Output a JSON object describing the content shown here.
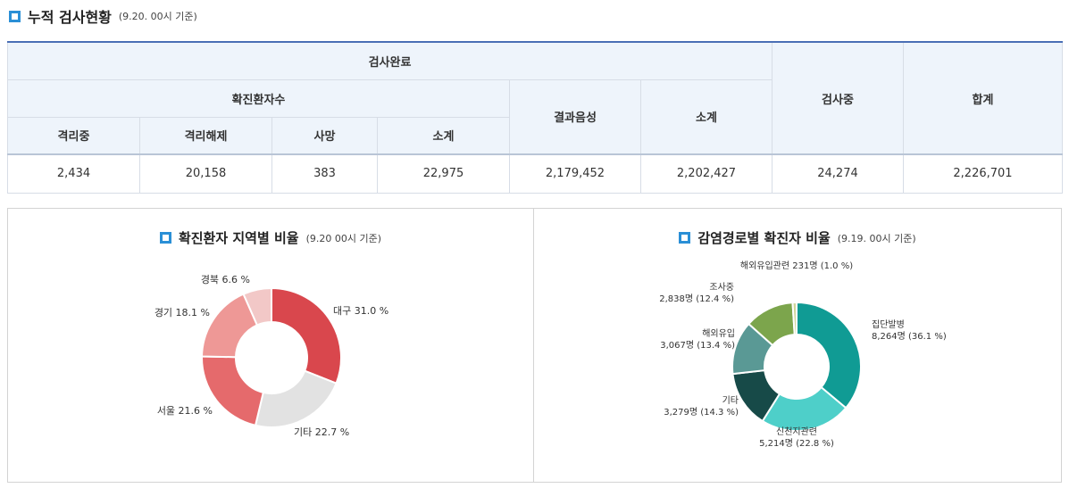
{
  "summary": {
    "title": "누적 검사현황",
    "subtitle": "(9.20. 00시 기준)",
    "header_completed": "검사완료",
    "header_confirmed": "확진환자수",
    "header_negative": "결과음성",
    "header_subtotal2": "소계",
    "header_testing": "검사중",
    "header_total": "합계",
    "sub_headers": [
      "격리중",
      "격리해제",
      "사망",
      "소계"
    ],
    "values": {
      "isolated": "2,434",
      "released": "20,158",
      "deaths": "383",
      "confirmed_subtotal": "22,975",
      "negative": "2,179,452",
      "completed_subtotal": "2,202,427",
      "testing": "24,274",
      "total": "2,226,701"
    }
  },
  "chart_data": [
    {
      "type": "pie",
      "title": "확진환자 지역별 비율",
      "subtitle": "(9.20 00시 기준)",
      "labels": [
        "대구",
        "기타",
        "서울",
        "경기",
        "경북"
      ],
      "values": [
        31.0,
        22.7,
        21.6,
        18.1,
        6.6
      ],
      "value_labels": [
        "대구 31.0 %",
        "기타 22.7 %",
        "서울 21.6 %",
        "경기 18.1 %",
        "경북 6.6 %"
      ],
      "colors": [
        "#d9474d",
        "#e2e2e2",
        "#e56a6c",
        "#ee9896",
        "#f2c8c7"
      ],
      "donut": true
    },
    {
      "type": "pie",
      "title": "감염경로별 확진자 비율",
      "subtitle": "(9.19. 00시 기준)",
      "labels": [
        "집단발병",
        "신천지관련",
        "기타",
        "해외유입",
        "조사중",
        "해외유입관련"
      ],
      "values": [
        36.1,
        22.8,
        14.3,
        13.4,
        12.4,
        1.0
      ],
      "counts": [
        8264,
        5214,
        3279,
        3067,
        2838,
        231
      ],
      "value_labels": [
        [
          "집단발병",
          "8,264명 (36.1 %)"
        ],
        [
          "신천지관련",
          "5,214명 (22.8 %)"
        ],
        [
          "기타",
          "3,279명 (14.3 %)"
        ],
        [
          "해외유입",
          "3,067명 (13.4 %)"
        ],
        [
          "조사중",
          "2,838명 (12.4 %)"
        ],
        [
          "해외유입관련 231명 (1.0 %)"
        ]
      ],
      "colors": [
        "#109b94",
        "#4ecfc9",
        "#174a48",
        "#5a9995",
        "#7ca54c",
        "#cfd59a"
      ],
      "donut": true
    }
  ]
}
